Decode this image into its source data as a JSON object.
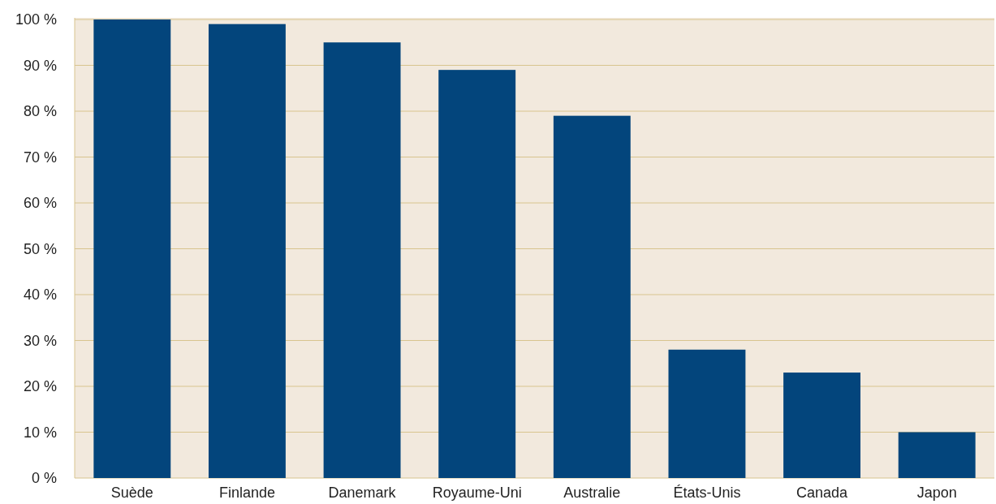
{
  "chart_data": {
    "type": "bar",
    "categories": [
      "Suède",
      "Finlande",
      "Danemark",
      "Royaume-Uni",
      "Australie",
      "États-Unis",
      "Canada",
      "Japon"
    ],
    "values": [
      100,
      99,
      95,
      89,
      79,
      28,
      23,
      10
    ],
    "color": "#03457c",
    "ylim": [
      0,
      100
    ],
    "yticks": [
      {
        "value": 0,
        "label": "0 %"
      },
      {
        "value": 10,
        "label": "10 %"
      },
      {
        "value": 20,
        "label": "20 %"
      },
      {
        "value": 30,
        "label": "30 %"
      },
      {
        "value": 40,
        "label": "40 %"
      },
      {
        "value": 50,
        "label": "50 %"
      },
      {
        "value": 60,
        "label": "60 %"
      },
      {
        "value": 70,
        "label": "70 %"
      },
      {
        "value": 80,
        "label": "80 %"
      },
      {
        "value": 90,
        "label": "90 %"
      },
      {
        "value": 100,
        "label": "100 %"
      }
    ],
    "grid": "y"
  }
}
